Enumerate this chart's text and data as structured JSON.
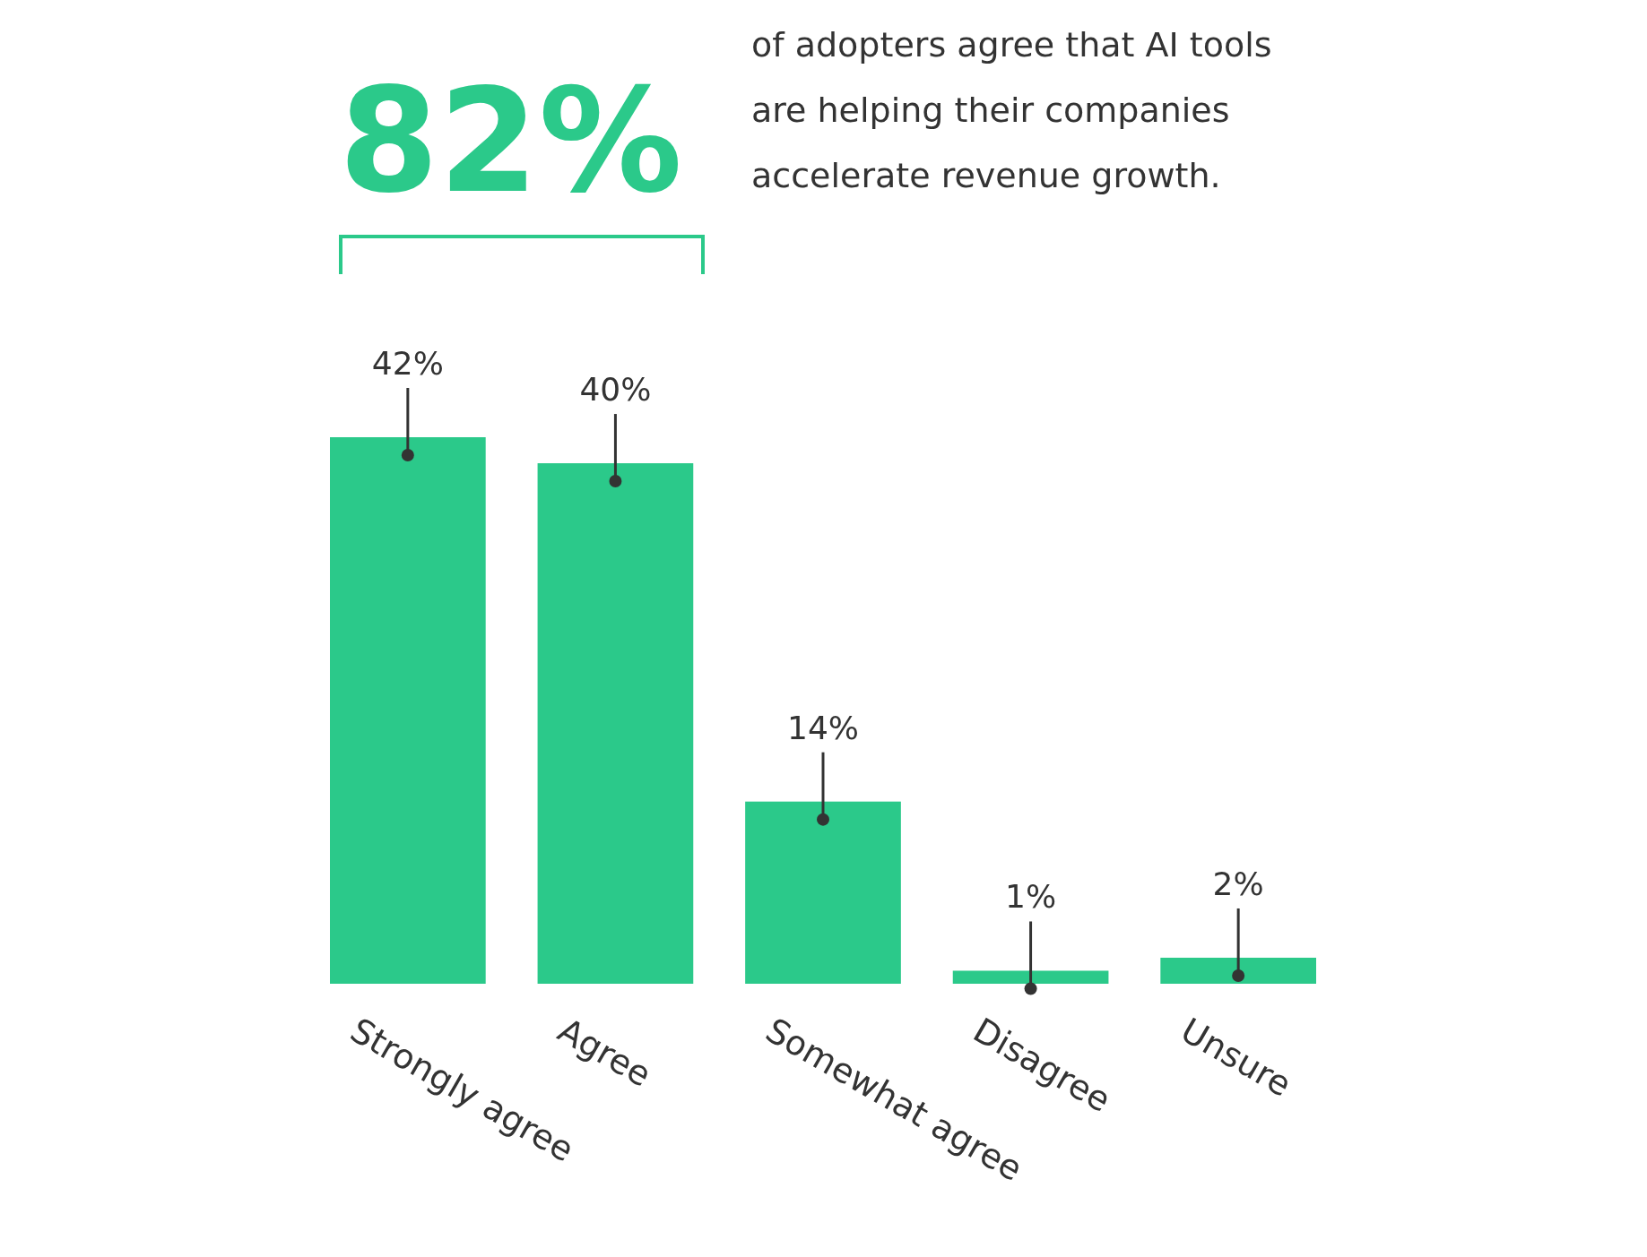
{
  "chart_data": {
    "type": "bar",
    "title": "82%",
    "subtitle": "of adopters agree that AI tools are helping their companies accelerate revenue growth.",
    "categories": [
      "Strongly agree",
      "Agree",
      "Somewhat agree",
      "Disagree",
      "Unsure"
    ],
    "values": [
      42,
      40,
      14,
      1,
      2
    ],
    "colors": [
      "#2bc98a",
      "#2bc98a",
      "#2bc98a",
      "#2bc98a",
      "#2bc98a"
    ],
    "value_labels": [
      "42%",
      "40%",
      "14%",
      "1%",
      "2%"
    ]
  }
}
